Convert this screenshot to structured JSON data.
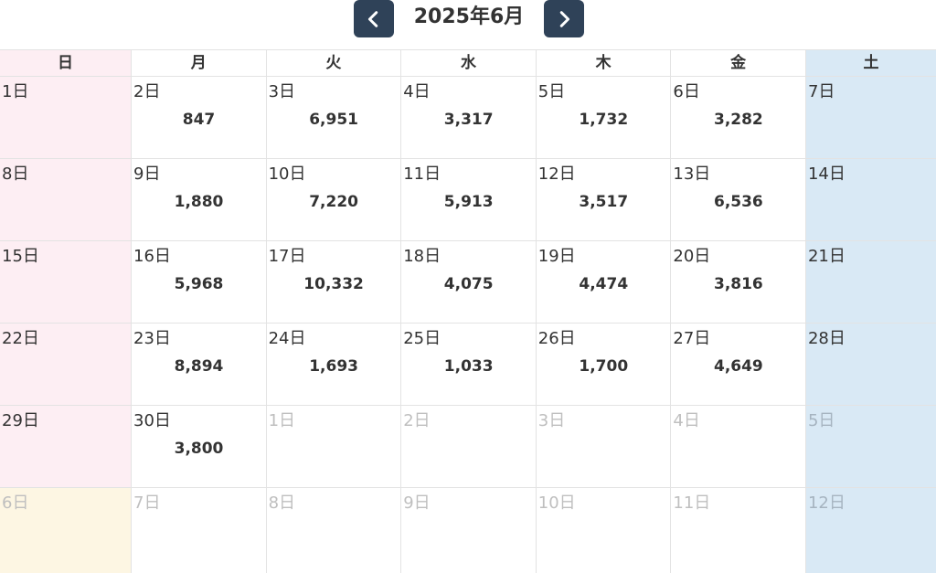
{
  "header": {
    "title": "2025年6月"
  },
  "weekdays": [
    "日",
    "月",
    "火",
    "水",
    "木",
    "金",
    "土"
  ],
  "weeks": [
    [
      {
        "day": "1日",
        "count": "",
        "other": false
      },
      {
        "day": "2日",
        "count": "847",
        "other": false
      },
      {
        "day": "3日",
        "count": "6,951",
        "other": false
      },
      {
        "day": "4日",
        "count": "3,317",
        "other": false
      },
      {
        "day": "5日",
        "count": "1,732",
        "other": false
      },
      {
        "day": "6日",
        "count": "3,282",
        "other": false
      },
      {
        "day": "7日",
        "count": "",
        "other": false
      }
    ],
    [
      {
        "day": "8日",
        "count": "",
        "other": false
      },
      {
        "day": "9日",
        "count": "1,880",
        "other": false
      },
      {
        "day": "10日",
        "count": "7,220",
        "other": false
      },
      {
        "day": "11日",
        "count": "5,913",
        "other": false
      },
      {
        "day": "12日",
        "count": "3,517",
        "other": false
      },
      {
        "day": "13日",
        "count": "6,536",
        "other": false
      },
      {
        "day": "14日",
        "count": "",
        "other": false
      }
    ],
    [
      {
        "day": "15日",
        "count": "",
        "other": false
      },
      {
        "day": "16日",
        "count": "5,968",
        "other": false
      },
      {
        "day": "17日",
        "count": "10,332",
        "other": false
      },
      {
        "day": "18日",
        "count": "4,075",
        "other": false
      },
      {
        "day": "19日",
        "count": "4,474",
        "other": false
      },
      {
        "day": "20日",
        "count": "3,816",
        "other": false
      },
      {
        "day": "21日",
        "count": "",
        "other": false
      }
    ],
    [
      {
        "day": "22日",
        "count": "",
        "other": false
      },
      {
        "day": "23日",
        "count": "8,894",
        "other": false
      },
      {
        "day": "24日",
        "count": "1,693",
        "other": false
      },
      {
        "day": "25日",
        "count": "1,033",
        "other": false
      },
      {
        "day": "26日",
        "count": "1,700",
        "other": false
      },
      {
        "day": "27日",
        "count": "4,649",
        "other": false
      },
      {
        "day": "28日",
        "count": "",
        "other": false
      }
    ],
    [
      {
        "day": "29日",
        "count": "",
        "other": false
      },
      {
        "day": "30日",
        "count": "3,800",
        "other": false
      },
      {
        "day": "1日",
        "count": "",
        "other": true
      },
      {
        "day": "2日",
        "count": "",
        "other": true
      },
      {
        "day": "3日",
        "count": "",
        "other": true
      },
      {
        "day": "4日",
        "count": "",
        "other": true
      },
      {
        "day": "5日",
        "count": "",
        "other": true
      }
    ],
    [
      {
        "day": "6日",
        "count": "",
        "other": true
      },
      {
        "day": "7日",
        "count": "",
        "other": true
      },
      {
        "day": "8日",
        "count": "",
        "other": true
      },
      {
        "day": "9日",
        "count": "",
        "other": true
      },
      {
        "day": "10日",
        "count": "",
        "other": true
      },
      {
        "day": "11日",
        "count": "",
        "other": true
      },
      {
        "day": "12日",
        "count": "",
        "other": true
      }
    ]
  ],
  "colors": {
    "nav_button": "#2f4258",
    "sunday_bg": "#fdeef3",
    "saturday_bg": "#d9e9f5",
    "next_month_sunday_bg": "#fdf6e3"
  },
  "icons": {
    "prev": "chevron-left-icon",
    "next": "chevron-right-icon"
  }
}
